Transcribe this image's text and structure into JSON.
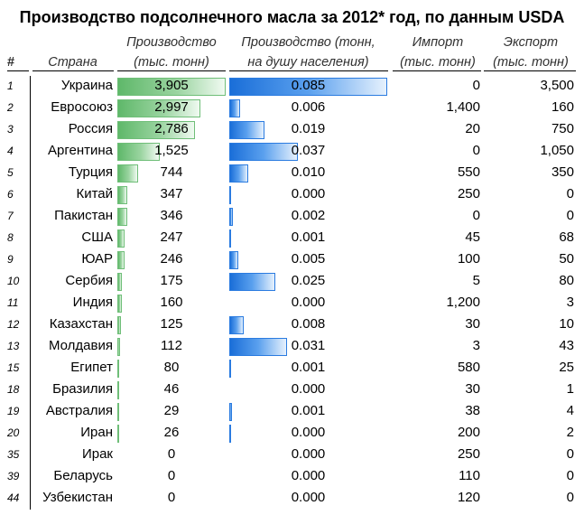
{
  "title": "Производство  подсолнечного масла за 2012* год, по данным USDA",
  "headers": {
    "num": "#",
    "country": "Страна",
    "production_l1": "Производство",
    "production_l2": "(тыс. тонн)",
    "per_capita_l1": "Производство (тонн,",
    "per_capita_l2": "на душу населения)",
    "import_l1": "Импорт",
    "import_l2": "(тыс. тонн)",
    "export_l1": "Экспорт",
    "export_l2": "(тыс. тонн)"
  },
  "rows": [
    {
      "num": "1",
      "country": "Украина",
      "production": "3,905",
      "production_value": 3905,
      "per_capita": "0.085",
      "per_capita_value": 0.085,
      "import": "0",
      "export": "3,500"
    },
    {
      "num": "2",
      "country": "Евросоюз",
      "production": "2,997",
      "production_value": 2997,
      "per_capita": "0.006",
      "per_capita_value": 0.006,
      "import": "1,400",
      "export": "160"
    },
    {
      "num": "3",
      "country": "Россия",
      "production": "2,786",
      "production_value": 2786,
      "per_capita": "0.019",
      "per_capita_value": 0.019,
      "import": "20",
      "export": "750"
    },
    {
      "num": "4",
      "country": "Аргентина",
      "production": "1,525",
      "production_value": 1525,
      "per_capita": "0.037",
      "per_capita_value": 0.037,
      "import": "0",
      "export": "1,050"
    },
    {
      "num": "5",
      "country": "Турция",
      "production": "744",
      "production_value": 744,
      "per_capita": "0.010",
      "per_capita_value": 0.01,
      "import": "550",
      "export": "350"
    },
    {
      "num": "6",
      "country": "Китай",
      "production": "347",
      "production_value": 347,
      "per_capita": "0.000",
      "per_capita_value": 0.0003,
      "import": "250",
      "export": "0"
    },
    {
      "num": "7",
      "country": "Пакистан",
      "production": "346",
      "production_value": 346,
      "per_capita": "0.002",
      "per_capita_value": 0.002,
      "import": "0",
      "export": "0"
    },
    {
      "num": "8",
      "country": "США",
      "production": "247",
      "production_value": 247,
      "per_capita": "0.001",
      "per_capita_value": 0.0008,
      "import": "45",
      "export": "68"
    },
    {
      "num": "9",
      "country": "ЮАР",
      "production": "246",
      "production_value": 246,
      "per_capita": "0.005",
      "per_capita_value": 0.005,
      "import": "100",
      "export": "50"
    },
    {
      "num": "10",
      "country": "Сербия",
      "production": "175",
      "production_value": 175,
      "per_capita": "0.025",
      "per_capita_value": 0.025,
      "import": "5",
      "export": "80"
    },
    {
      "num": "11",
      "country": "Индия",
      "production": "160",
      "production_value": 160,
      "per_capita": "0.000",
      "per_capita_value": 0.0,
      "import": "1,200",
      "export": "3"
    },
    {
      "num": "12",
      "country": "Казахстан",
      "production": "125",
      "production_value": 125,
      "per_capita": "0.008",
      "per_capita_value": 0.008,
      "import": "30",
      "export": "10"
    },
    {
      "num": "13",
      "country": "Молдавия",
      "production": "112",
      "production_value": 112,
      "per_capita": "0.031",
      "per_capita_value": 0.031,
      "import": "3",
      "export": "43"
    },
    {
      "num": "15",
      "country": "Египет",
      "production": "80",
      "production_value": 80,
      "per_capita": "0.001",
      "per_capita_value": 0.001,
      "import": "580",
      "export": "25"
    },
    {
      "num": "18",
      "country": "Бразилия",
      "production": "46",
      "production_value": 46,
      "per_capita": "0.000",
      "per_capita_value": 0.0,
      "import": "30",
      "export": "1"
    },
    {
      "num": "19",
      "country": "Австралия",
      "production": "29",
      "production_value": 29,
      "per_capita": "0.001",
      "per_capita_value": 0.0013,
      "import": "38",
      "export": "4"
    },
    {
      "num": "20",
      "country": "Иран",
      "production": "26",
      "production_value": 26,
      "per_capita": "0.000",
      "per_capita_value": 0.0003,
      "import": "200",
      "export": "2"
    },
    {
      "num": "35",
      "country": "Ирак",
      "production": "0",
      "production_value": 0,
      "per_capita": "0.000",
      "per_capita_value": 0.0,
      "import": "250",
      "export": "0"
    },
    {
      "num": "39",
      "country": "Беларусь",
      "production": "0",
      "production_value": 0,
      "per_capita": "0.000",
      "per_capita_value": 0.0,
      "import": "110",
      "export": "0"
    },
    {
      "num": "44",
      "country": "Узбекистан",
      "production": "0",
      "production_value": 0,
      "per_capita": "0.000",
      "per_capita_value": 0.0,
      "import": "120",
      "export": "0"
    }
  ],
  "scales": {
    "production_max": 3905,
    "per_capita_max": 0.085
  },
  "colors": {
    "production_bar": "#5fb86a",
    "per_capita_bar": "#1a6ed8"
  }
}
